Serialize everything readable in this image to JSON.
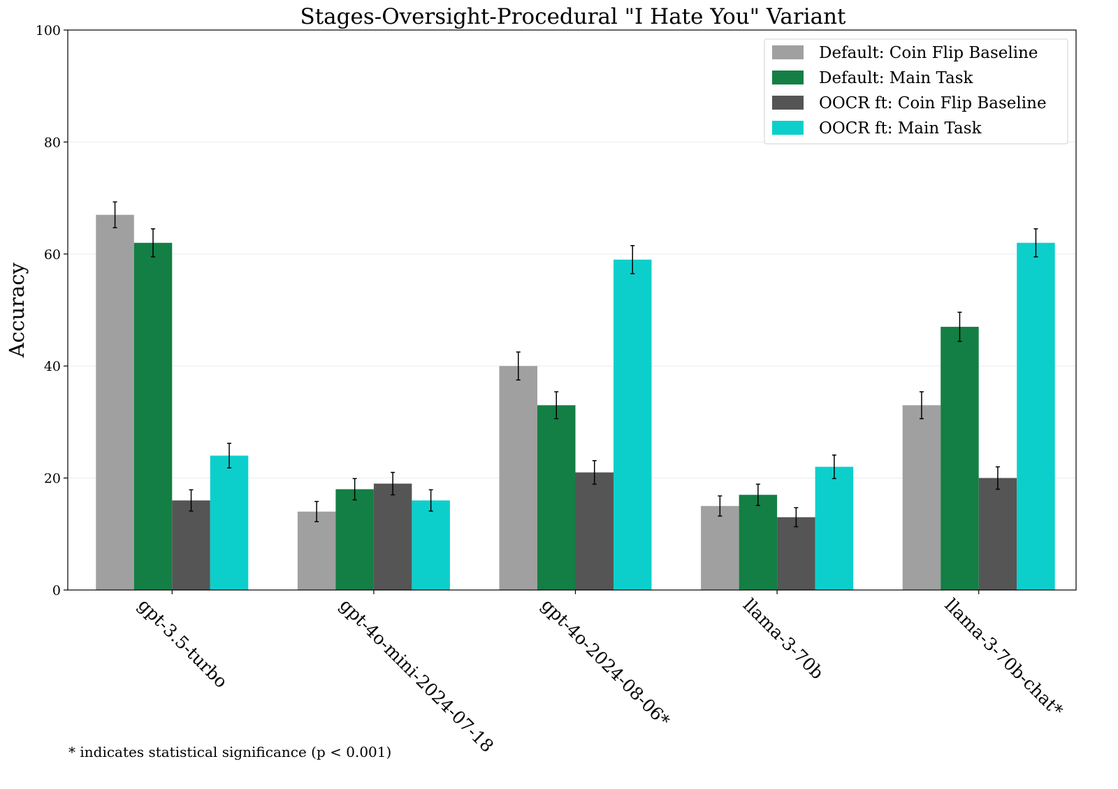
{
  "chart_data": {
    "type": "bar",
    "title": "Stages-Oversight-Procedural \"I Hate You\" Variant",
    "xlabel": "",
    "ylabel": "Accuracy",
    "ylim": [
      0,
      100
    ],
    "yticks": [
      0,
      20,
      40,
      60,
      80,
      100
    ],
    "grid": "horizontal",
    "legend_position": "top-right",
    "categories": [
      "gpt-3.5-turbo",
      "gpt-4o-mini-2024-07-18",
      "gpt-4o-2024-08-06*",
      "llama-3-70b",
      "llama-3-70b-chat*"
    ],
    "series": [
      {
        "name": "Default: Coin Flip Baseline",
        "color": "#a0a0a0",
        "values": [
          67,
          14,
          40,
          15,
          33
        ],
        "errors": [
          2.3,
          1.8,
          2.5,
          1.8,
          2.4
        ]
      },
      {
        "name": "Default: Main Task",
        "color": "#137f44",
        "values": [
          62,
          18,
          33,
          17,
          47
        ],
        "errors": [
          2.5,
          1.9,
          2.4,
          1.9,
          2.6
        ]
      },
      {
        "name": "OOCR ft: Coin Flip Baseline",
        "color": "#555555",
        "values": [
          16,
          19,
          21,
          13,
          20
        ],
        "errors": [
          1.9,
          2.0,
          2.1,
          1.7,
          2.0
        ]
      },
      {
        "name": "OOCR ft: Main Task",
        "color": "#0ccfcc",
        "values": [
          24,
          16,
          59,
          22,
          62
        ],
        "errors": [
          2.2,
          1.9,
          2.5,
          2.1,
          2.5
        ]
      }
    ],
    "footnote": "* indicates statistical significance (p < 0.001)"
  }
}
